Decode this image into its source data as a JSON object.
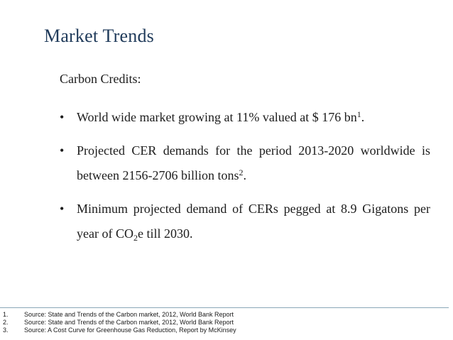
{
  "slide": {
    "title": "Market Trends",
    "subtitle": "Carbon Credits:",
    "bullet_char": "•",
    "bullets": [
      {
        "text": "World wide market growing at 11% valued at $ 176 bn",
        "sup": "1",
        "tail": "."
      },
      {
        "text": "Projected CER demands for the period 2013-2020 worldwide is between 2156-2706 billion tons",
        "sup": "2",
        "tail": "."
      },
      {
        "pre": "Minimum projected demand of CERs pegged at 8.9 Gigatons per year of CO",
        "sub": "2",
        "post": "e  till 2030."
      }
    ],
    "footnotes": [
      {
        "num": "1.",
        "text": "Source: State and Trends of the Carbon market, 2012, World Bank Report"
      },
      {
        "num": "2.",
        "text": "Source: State and Trends of the Carbon market, 2012, World Bank Report"
      },
      {
        "num": "3.",
        "text": "Source: A Cost Curve for Greenhouse Gas Reduction, Report by McKinsey"
      }
    ]
  },
  "colors": {
    "title": "#1f3a5a",
    "rule": "#8aa7b8"
  }
}
